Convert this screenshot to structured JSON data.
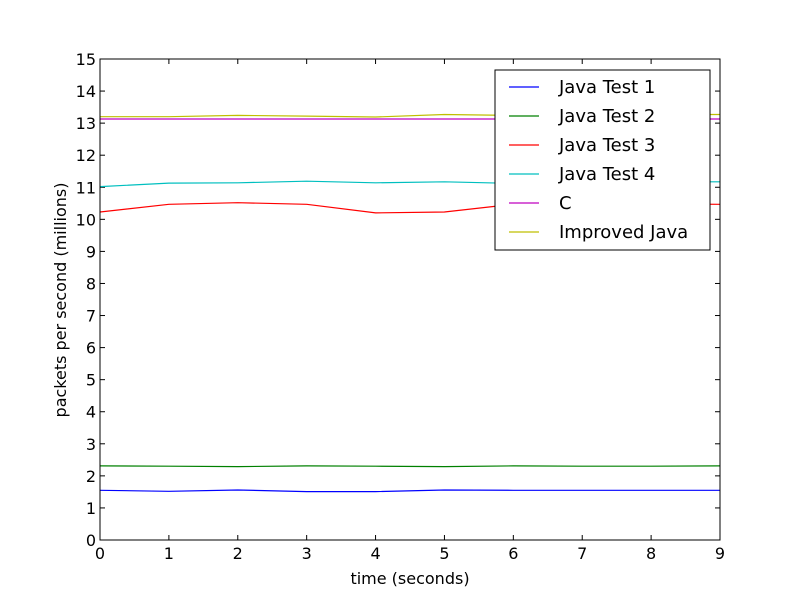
{
  "chart_data": {
    "type": "line",
    "xlabel": "time (seconds)",
    "ylabel": "packets per second (millions)",
    "xlim": [
      0,
      9
    ],
    "ylim": [
      0,
      15
    ],
    "x": [
      0,
      1,
      2,
      3,
      4,
      5,
      6,
      7,
      8,
      9
    ],
    "xticks": [
      "0",
      "1",
      "2",
      "3",
      "4",
      "5",
      "6",
      "7",
      "8",
      "9"
    ],
    "yticks": [
      "0",
      "1",
      "2",
      "3",
      "4",
      "5",
      "6",
      "7",
      "8",
      "9",
      "10",
      "11",
      "12",
      "13",
      "14",
      "15"
    ],
    "grid": false,
    "legend_position": "top-right",
    "series": [
      {
        "name": "Java Test 1",
        "color": "#0000ff",
        "values": [
          1.55,
          1.52,
          1.56,
          1.51,
          1.51,
          1.56,
          1.55,
          1.55,
          1.55,
          1.55
        ]
      },
      {
        "name": "Java Test 2",
        "color": "#008000",
        "values": [
          2.31,
          2.3,
          2.29,
          2.31,
          2.3,
          2.29,
          2.31,
          2.3,
          2.3,
          2.31
        ]
      },
      {
        "name": "Java Test 3",
        "color": "#ff0000",
        "values": [
          10.23,
          10.47,
          10.52,
          10.47,
          10.2,
          10.23,
          10.47,
          10.5,
          10.48,
          10.47
        ]
      },
      {
        "name": "Java Test 4",
        "color": "#00bfbf",
        "values": [
          11.02,
          11.13,
          11.14,
          11.19,
          11.14,
          11.17,
          11.12,
          11.15,
          11.17,
          11.17
        ]
      },
      {
        "name": "C",
        "color": "#bf00bf",
        "values": [
          13.13,
          13.13,
          13.13,
          13.13,
          13.13,
          13.13,
          13.13,
          13.13,
          13.13,
          13.13
        ]
      },
      {
        "name": "Improved Java",
        "color": "#bfbf00",
        "values": [
          13.2,
          13.2,
          13.24,
          13.22,
          13.19,
          13.27,
          13.24,
          13.26,
          13.27,
          13.27
        ]
      }
    ]
  }
}
